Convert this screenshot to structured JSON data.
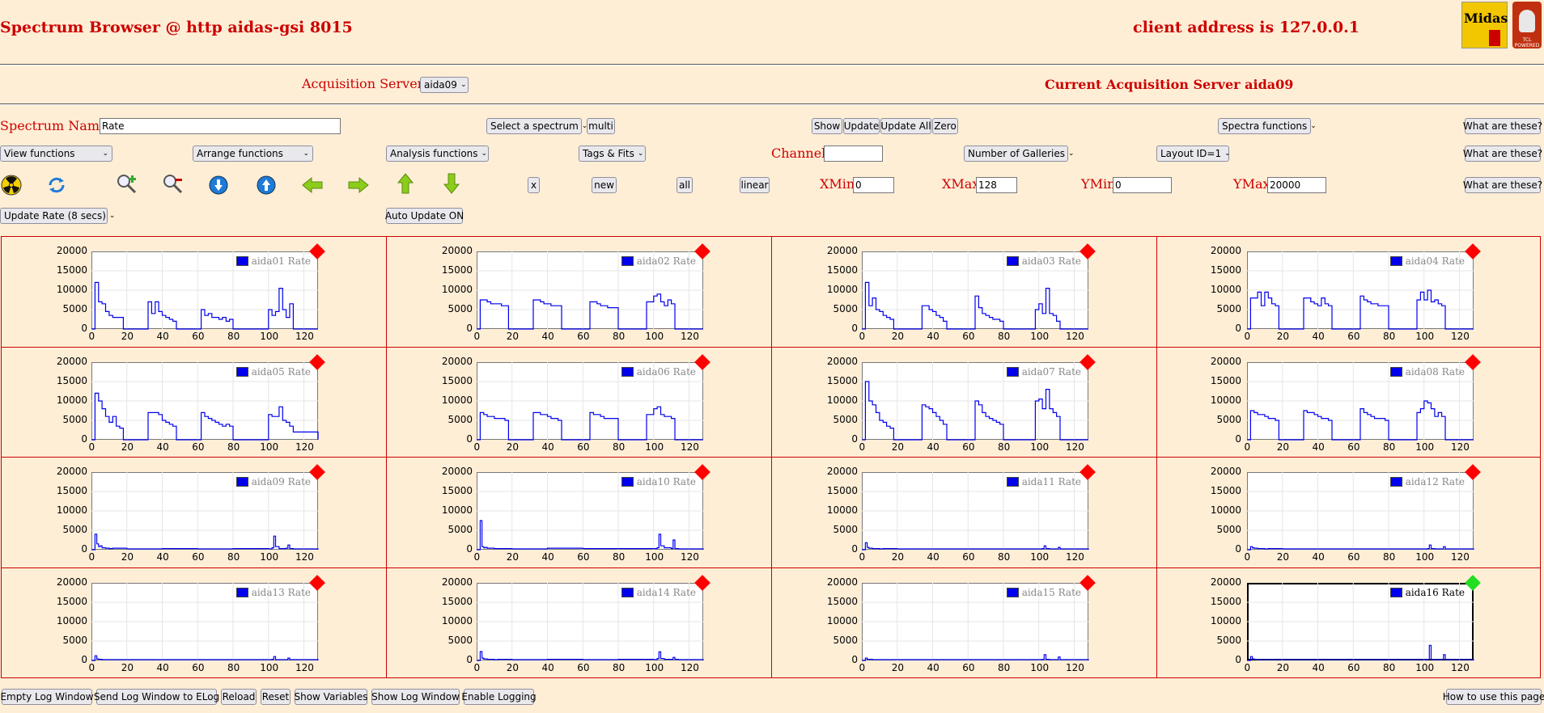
{
  "header": {
    "title": "Spectrum Browser @ http aidas-gsi 8015",
    "client": "client address is 127.0.0.1",
    "logo_midas": "Midas",
    "logo_tcl": "TCL POWERED"
  },
  "servers": {
    "label": "Acquisition Servers",
    "selected": "aida09",
    "current": "Current Acquisition Server aida09"
  },
  "row1": {
    "spectrum_label": "Spectrum Name:",
    "spectrum_value": "Rate",
    "select_spectrum": "Select a spectrum",
    "multi": "multi",
    "show": "Show",
    "update": "Update",
    "update_all": "Update All",
    "zero": "Zero",
    "spectra_functions": "Spectra functions",
    "what": "What are these?"
  },
  "row2": {
    "view": "View functions",
    "arrange": "Arrange functions",
    "analysis": "Analysis functions",
    "tags": "Tags & Fits",
    "channel_label": "Channel:",
    "channel_value": "",
    "galleries": "Number of Galleries",
    "layout": "Layout ID=1",
    "what": "What are these?"
  },
  "row3": {
    "icons": [
      "radiation-icon",
      "refresh-icon",
      "zoom-in-icon",
      "zoom-out-icon",
      "down-circle-icon",
      "up-circle-icon",
      "left-arrow-icon",
      "right-arrow-icon",
      "up-arrow-icon",
      "down-arrow-icon"
    ],
    "x": "x",
    "new": "new",
    "all": "all",
    "linear": "linear",
    "xmin_label": "XMin",
    "xmin": "0",
    "xmax_label": "XMax",
    "xmax": "128",
    "ymin_label": "YMin",
    "ymin": "0",
    "ymax_label": "YMax",
    "ymax": "20000",
    "what": "What are these?"
  },
  "row4": {
    "update_rate": "Update Rate (8 secs)",
    "auto_update": "Auto Update ON"
  },
  "chart_data": {
    "type": "line",
    "xlim": [
      0,
      128
    ],
    "ylim": [
      0,
      20000
    ],
    "x_ticks": [
      "0",
      "20",
      "40",
      "60",
      "80",
      "100",
      "120"
    ],
    "y_ticks": [
      "20000",
      "15000",
      "10000",
      "5000",
      "0"
    ],
    "panels": [
      {
        "name": "aida01 Rate",
        "status": "red",
        "x": [
          0,
          2,
          4,
          6,
          8,
          10,
          12,
          14,
          16,
          18,
          20,
          30,
          32,
          34,
          36,
          38,
          40,
          42,
          44,
          46,
          48,
          60,
          62,
          64,
          66,
          68,
          70,
          72,
          74,
          76,
          78,
          80,
          98,
          100,
          102,
          104,
          106,
          108,
          110,
          112,
          114,
          128
        ],
        "y": [
          0,
          12000,
          7000,
          6500,
          4500,
          3500,
          3000,
          3000,
          3000,
          0,
          0,
          0,
          7000,
          4000,
          7000,
          4500,
          3500,
          3000,
          2500,
          2000,
          0,
          0,
          5000,
          3500,
          4000,
          3000,
          3000,
          2500,
          3000,
          2000,
          2500,
          0,
          0,
          5000,
          3500,
          4500,
          10500,
          5000,
          3000,
          6500,
          0,
          0
        ]
      },
      {
        "name": "aida02 Rate",
        "status": "red",
        "x": [
          0,
          2,
          4,
          6,
          8,
          10,
          12,
          14,
          16,
          18,
          30,
          32,
          34,
          36,
          38,
          40,
          42,
          44,
          46,
          48,
          62,
          64,
          66,
          68,
          70,
          72,
          74,
          76,
          78,
          80,
          94,
          96,
          98,
          100,
          102,
          104,
          106,
          108,
          110,
          112,
          128
        ],
        "y": [
          0,
          7500,
          7500,
          7000,
          6500,
          6500,
          6500,
          6000,
          6000,
          0,
          0,
          7500,
          7500,
          7000,
          6500,
          6500,
          6000,
          6000,
          6000,
          0,
          0,
          7000,
          7000,
          6500,
          6000,
          6000,
          5500,
          5500,
          5500,
          0,
          0,
          7000,
          7000,
          8500,
          9000,
          7000,
          6000,
          7500,
          6500,
          0,
          0
        ]
      },
      {
        "name": "aida03 Rate",
        "status": "red",
        "x": [
          0,
          2,
          4,
          6,
          8,
          10,
          12,
          14,
          16,
          18,
          20,
          32,
          34,
          36,
          38,
          40,
          42,
          44,
          46,
          48,
          62,
          64,
          66,
          68,
          70,
          72,
          74,
          76,
          78,
          80,
          96,
          98,
          100,
          102,
          104,
          106,
          108,
          110,
          112,
          128
        ],
        "y": [
          0,
          12000,
          6000,
          8000,
          5000,
          4500,
          3500,
          3000,
          2500,
          0,
          0,
          0,
          6000,
          6000,
          5000,
          4500,
          3500,
          3000,
          2000,
          0,
          0,
          8500,
          5500,
          4000,
          3500,
          3000,
          2500,
          2500,
          2000,
          0,
          0,
          5000,
          6500,
          4000,
          10500,
          4000,
          3500,
          2000,
          0,
          0
        ]
      },
      {
        "name": "aida04 Rate",
        "status": "red",
        "x": [
          0,
          2,
          4,
          6,
          8,
          10,
          12,
          14,
          16,
          18,
          30,
          32,
          34,
          36,
          38,
          40,
          42,
          44,
          46,
          48,
          62,
          64,
          66,
          68,
          70,
          72,
          74,
          76,
          78,
          80,
          94,
          96,
          98,
          100,
          102,
          104,
          106,
          108,
          110,
          112,
          128
        ],
        "y": [
          0,
          8000,
          8000,
          9500,
          6000,
          9500,
          8000,
          6500,
          6000,
          0,
          0,
          8000,
          8000,
          7000,
          6500,
          6000,
          8000,
          6500,
          6000,
          0,
          0,
          8500,
          7500,
          7000,
          6500,
          6500,
          6000,
          6000,
          6000,
          0,
          0,
          7500,
          9500,
          7500,
          10000,
          7000,
          7500,
          6500,
          6000,
          0,
          0
        ]
      },
      {
        "name": "aida05 Rate",
        "status": "red",
        "x": [
          0,
          2,
          4,
          6,
          8,
          10,
          12,
          14,
          16,
          18,
          20,
          30,
          32,
          34,
          36,
          38,
          40,
          42,
          44,
          46,
          48,
          60,
          62,
          64,
          66,
          68,
          70,
          72,
          74,
          76,
          78,
          80,
          98,
          100,
          102,
          104,
          106,
          108,
          110,
          112,
          114,
          128
        ],
        "y": [
          0,
          12000,
          10000,
          8000,
          6000,
          4500,
          6000,
          3500,
          3000,
          0,
          0,
          0,
          7000,
          7000,
          7000,
          6500,
          5000,
          4500,
          4000,
          3500,
          0,
          0,
          7000,
          6000,
          5500,
          5000,
          4500,
          4000,
          3500,
          4000,
          3500,
          0,
          0,
          6500,
          6000,
          6000,
          8500,
          5000,
          4500,
          3500,
          2000,
          0
        ]
      },
      {
        "name": "aida06 Rate",
        "status": "red",
        "x": [
          0,
          2,
          4,
          6,
          8,
          10,
          12,
          14,
          16,
          18,
          30,
          32,
          34,
          36,
          38,
          40,
          42,
          44,
          46,
          48,
          62,
          64,
          66,
          68,
          70,
          72,
          74,
          76,
          78,
          80,
          94,
          96,
          98,
          100,
          102,
          104,
          106,
          108,
          110,
          112,
          128
        ],
        "y": [
          0,
          7000,
          6500,
          6000,
          6000,
          5500,
          5500,
          5500,
          5000,
          0,
          0,
          7000,
          7000,
          6500,
          6500,
          6000,
          5500,
          5500,
          5000,
          0,
          0,
          7000,
          6500,
          6500,
          6000,
          5500,
          5500,
          5500,
          5500,
          0,
          0,
          6500,
          6500,
          8000,
          8500,
          6500,
          6000,
          6000,
          5500,
          0,
          0
        ]
      },
      {
        "name": "aida07 Rate",
        "status": "red",
        "x": [
          0,
          2,
          4,
          6,
          8,
          10,
          12,
          14,
          16,
          18,
          20,
          32,
          34,
          36,
          38,
          40,
          42,
          44,
          46,
          48,
          62,
          64,
          66,
          68,
          70,
          72,
          74,
          76,
          78,
          80,
          96,
          98,
          100,
          102,
          104,
          106,
          108,
          110,
          112,
          128
        ],
        "y": [
          0,
          15000,
          10000,
          9000,
          7000,
          5000,
          4500,
          3500,
          3000,
          0,
          0,
          0,
          9000,
          8500,
          8000,
          7000,
          6000,
          5000,
          4000,
          0,
          0,
          10000,
          9000,
          7000,
          6000,
          5500,
          5000,
          4500,
          4000,
          0,
          0,
          10000,
          10500,
          8000,
          13000,
          8000,
          7000,
          6000,
          0,
          0
        ]
      },
      {
        "name": "aida08 Rate",
        "status": "red",
        "x": [
          0,
          2,
          4,
          6,
          8,
          10,
          12,
          14,
          16,
          18,
          30,
          32,
          34,
          36,
          38,
          40,
          42,
          44,
          46,
          48,
          62,
          64,
          66,
          68,
          70,
          72,
          74,
          76,
          78,
          80,
          94,
          96,
          98,
          100,
          102,
          104,
          106,
          108,
          110,
          112,
          128
        ],
        "y": [
          0,
          7500,
          7000,
          6500,
          6500,
          6000,
          5500,
          5500,
          5000,
          0,
          0,
          7500,
          7000,
          7000,
          6500,
          6000,
          5500,
          5500,
          5000,
          0,
          0,
          8000,
          7000,
          6500,
          6000,
          5500,
          5500,
          5500,
          5000,
          0,
          0,
          7000,
          8000,
          10000,
          9500,
          8000,
          6000,
          7000,
          6000,
          0,
          0
        ]
      },
      {
        "name": "aida09 Rate",
        "status": "red",
        "x": [
          0,
          1,
          2,
          3,
          4,
          5,
          6,
          8,
          10,
          12,
          20,
          40,
          60,
          80,
          100,
          102,
          103,
          104,
          106,
          110,
          111,
          112,
          114,
          128
        ],
        "y": [
          0,
          0,
          4000,
          1500,
          800,
          1000,
          500,
          400,
          300,
          400,
          200,
          300,
          200,
          300,
          200,
          500,
          3500,
          800,
          300,
          400,
          1200,
          300,
          200,
          0
        ]
      },
      {
        "name": "aida10 Rate",
        "status": "red",
        "x": [
          0,
          1,
          2,
          3,
          4,
          5,
          6,
          8,
          10,
          12,
          20,
          40,
          60,
          80,
          100,
          102,
          103,
          104,
          106,
          110,
          111,
          112,
          114,
          128
        ],
        "y": [
          0,
          0,
          7500,
          800,
          500,
          600,
          400,
          400,
          300,
          300,
          200,
          400,
          300,
          300,
          300,
          500,
          4000,
          1000,
          500,
          300,
          2500,
          300,
          200,
          0
        ]
      },
      {
        "name": "aida11 Rate",
        "status": "red",
        "x": [
          0,
          1,
          2,
          3,
          4,
          5,
          6,
          8,
          10,
          12,
          20,
          40,
          60,
          80,
          100,
          102,
          103,
          104,
          106,
          110,
          111,
          112,
          114,
          128
        ],
        "y": [
          0,
          0,
          1800,
          600,
          400,
          400,
          300,
          300,
          200,
          300,
          200,
          200,
          200,
          200,
          200,
          300,
          1000,
          300,
          200,
          200,
          600,
          200,
          200,
          0
        ]
      },
      {
        "name": "aida12 Rate",
        "status": "red",
        "x": [
          0,
          1,
          2,
          3,
          4,
          5,
          6,
          8,
          10,
          12,
          20,
          40,
          60,
          80,
          100,
          102,
          103,
          104,
          106,
          110,
          111,
          112,
          114,
          128
        ],
        "y": [
          0,
          0,
          800,
          500,
          400,
          400,
          300,
          300,
          200,
          300,
          200,
          200,
          200,
          200,
          200,
          300,
          1200,
          300,
          200,
          200,
          800,
          200,
          200,
          0
        ]
      },
      {
        "name": "aida13 Rate",
        "status": "red",
        "x": [
          0,
          1,
          2,
          3,
          4,
          5,
          6,
          8,
          10,
          12,
          20,
          40,
          60,
          80,
          100,
          102,
          103,
          104,
          106,
          110,
          111,
          112,
          114,
          128
        ],
        "y": [
          0,
          0,
          1200,
          400,
          300,
          300,
          200,
          200,
          200,
          200,
          200,
          200,
          200,
          200,
          200,
          300,
          1000,
          200,
          200,
          200,
          600,
          200,
          200,
          0
        ]
      },
      {
        "name": "aida14 Rate",
        "status": "red",
        "x": [
          0,
          1,
          2,
          3,
          4,
          5,
          6,
          8,
          10,
          12,
          20,
          40,
          60,
          80,
          100,
          102,
          103,
          104,
          106,
          110,
          111,
          112,
          114,
          128
        ],
        "y": [
          0,
          0,
          2300,
          600,
          400,
          400,
          300,
          300,
          200,
          300,
          200,
          300,
          200,
          300,
          200,
          500,
          2200,
          500,
          300,
          300,
          800,
          300,
          200,
          0
        ]
      },
      {
        "name": "aida15 Rate",
        "status": "red",
        "x": [
          0,
          1,
          2,
          3,
          4,
          5,
          6,
          8,
          10,
          12,
          20,
          40,
          60,
          80,
          100,
          102,
          103,
          104,
          106,
          110,
          111,
          112,
          114,
          128
        ],
        "y": [
          0,
          0,
          600,
          300,
          300,
          300,
          200,
          200,
          200,
          200,
          200,
          200,
          200,
          200,
          200,
          300,
          1500,
          300,
          200,
          200,
          900,
          200,
          200,
          0
        ]
      },
      {
        "name": "aida16 Rate",
        "status": "green",
        "x": [
          0,
          1,
          2,
          3,
          4,
          5,
          6,
          8,
          10,
          12,
          20,
          40,
          60,
          80,
          100,
          102,
          103,
          104,
          106,
          110,
          111,
          112,
          114,
          128
        ],
        "y": [
          0,
          0,
          1000,
          400,
          300,
          300,
          200,
          200,
          200,
          200,
          200,
          200,
          200,
          200,
          200,
          300,
          3900,
          300,
          200,
          200,
          1500,
          200,
          200,
          0
        ]
      }
    ]
  },
  "footer": {
    "buttons": [
      "Empty Log Window",
      "Send Log Window to ELog",
      "Reload",
      "Reset",
      "Show Variables",
      "Show Log Window",
      "Enable Logging"
    ],
    "help": "How to use this page"
  },
  "colors": {
    "accent": "#cc0000",
    "bg": "#ffeed6",
    "series": "#0000ee",
    "status_red": "#ff0000",
    "status_green": "#22dd22"
  }
}
